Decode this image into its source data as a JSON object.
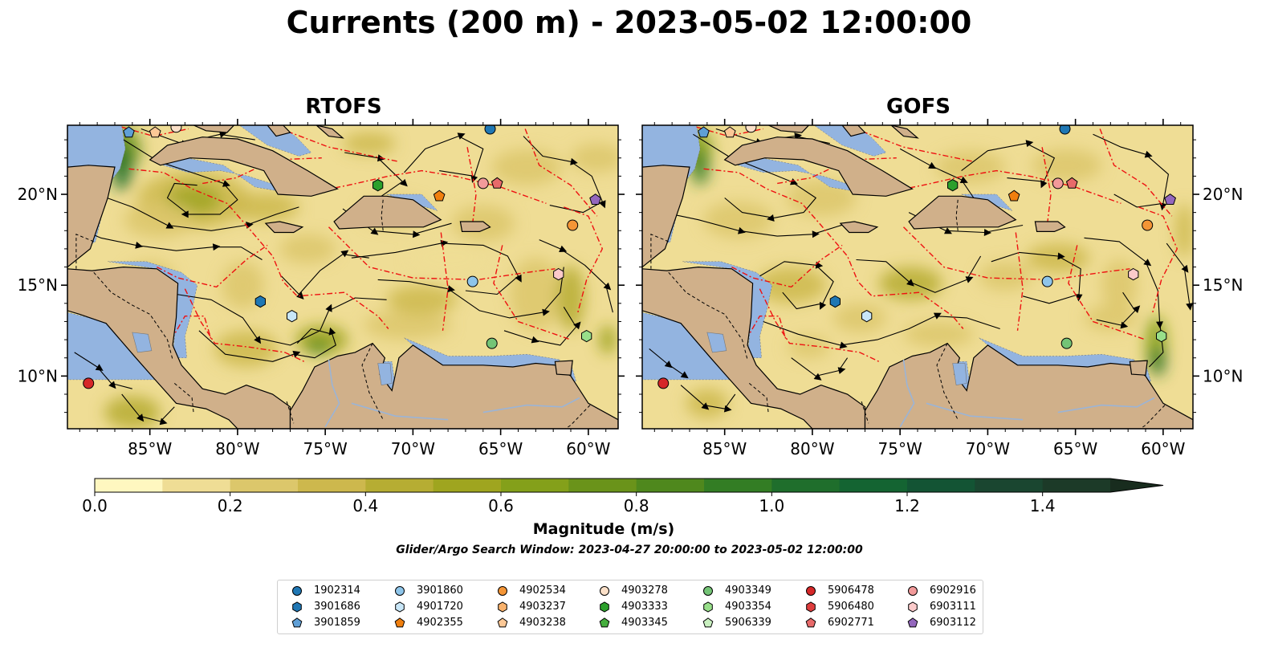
{
  "title": "Currents (200 m) - 2023-05-02 12:00:00",
  "panels": [
    {
      "id": "rtofs",
      "title": "RTOFS"
    },
    {
      "id": "gofs",
      "title": "GOFS"
    }
  ],
  "map_extent": {
    "lon_min": -89.7,
    "lon_max": -58.3,
    "lat_min": 7.1,
    "lat_max": 23.8
  },
  "lon_ticks": [
    "85°W",
    "80°W",
    "75°W",
    "70°W",
    "65°W",
    "60°W"
  ],
  "lon_tick_values": [
    -85,
    -80,
    -75,
    -70,
    -65,
    -60
  ],
  "lat_ticks": [
    "10°N",
    "15°N",
    "20°N"
  ],
  "lat_tick_values": [
    10,
    15,
    20
  ],
  "colorbar": {
    "label": "Magnitude (m/s)",
    "min": 0.0,
    "max": 1.5,
    "step": 0.1,
    "extend": "max",
    "tick_labels": [
      "0.0",
      "0.2",
      "0.4",
      "0.6",
      "0.8",
      "1.0",
      "1.2",
      "1.4"
    ],
    "tick_values": [
      0.0,
      0.2,
      0.4,
      0.6,
      0.8,
      1.0,
      1.2,
      1.4
    ],
    "colors": [
      "#fff7c0",
      "#efdd95",
      "#dcc76b",
      "#cdb84d",
      "#b6ad33",
      "#9fa51f",
      "#84a01a",
      "#6a931a",
      "#4f881d",
      "#337d24",
      "#1f6e2c",
      "#146432",
      "#135434",
      "#1a4630",
      "#1c3a28",
      "#182c1e"
    ]
  },
  "search_window": "Glider/Argo Search Window: 2023-04-27 20:00:00 to 2023-05-02 12:00:00",
  "colors": {
    "land": "#d0b08a",
    "shallow_water": "#93b4e0",
    "eez_line": "#ee1111",
    "streamline": "#000000"
  },
  "legend": [
    {
      "label": "1902314",
      "marker": "circle",
      "color": "#1f77b4"
    },
    {
      "label": "3901686",
      "marker": "hexagon",
      "color": "#1f77b4"
    },
    {
      "label": "3901859",
      "marker": "pentagon",
      "color": "#5f9fd6"
    },
    {
      "label": "3901860",
      "marker": "circle",
      "color": "#8ec5ea"
    },
    {
      "label": "4901720",
      "marker": "hexagon",
      "color": "#c8e6f7"
    },
    {
      "label": "4902355",
      "marker": "pentagon",
      "color": "#f07f0e"
    },
    {
      "label": "4902534",
      "marker": "circle",
      "color": "#f49536"
    },
    {
      "label": "4903237",
      "marker": "hexagon",
      "color": "#f9b26c"
    },
    {
      "label": "4903238",
      "marker": "pentagon",
      "color": "#fcc896"
    },
    {
      "label": "4903278",
      "marker": "circle",
      "color": "#fbe0c8"
    },
    {
      "label": "4903333",
      "marker": "hexagon",
      "color": "#2ca02c"
    },
    {
      "label": "4903345",
      "marker": "pentagon",
      "color": "#45ae3d"
    },
    {
      "label": "4903349",
      "marker": "circle",
      "color": "#74c476"
    },
    {
      "label": "4903354",
      "marker": "hexagon",
      "color": "#98df8a"
    },
    {
      "label": "5906339",
      "marker": "pentagon",
      "color": "#c9f0c0"
    },
    {
      "label": "5906478",
      "marker": "circle",
      "color": "#d62728"
    },
    {
      "label": "5906480",
      "marker": "hexagon",
      "color": "#de3d3d"
    },
    {
      "label": "6902771",
      "marker": "pentagon",
      "color": "#e86a6a"
    },
    {
      "label": "6902916",
      "marker": "circle",
      "color": "#f29a9a"
    },
    {
      "label": "6903111",
      "marker": "hexagon",
      "color": "#fbcaca"
    },
    {
      "label": "6903112",
      "marker": "pentagon",
      "color": "#9467bd"
    }
  ],
  "floats": [
    {
      "id": "3901859",
      "lon": -86.2,
      "lat": 23.4
    },
    {
      "id": "4903238",
      "lon": -84.7,
      "lat": 23.4
    },
    {
      "id": "4903278",
      "lon": -83.5,
      "lat": 23.7
    },
    {
      "id": "1902314",
      "lon": -65.6,
      "lat": 23.6
    },
    {
      "id": "4903333",
      "lon": -72.0,
      "lat": 20.5
    },
    {
      "id": "4902355",
      "lon": -68.5,
      "lat": 19.9
    },
    {
      "id": "6902916",
      "lon": -66.0,
      "lat": 20.6
    },
    {
      "id": "6902771",
      "lon": -65.2,
      "lat": 20.6
    },
    {
      "id": "6903112",
      "lon": -59.6,
      "lat": 19.7
    },
    {
      "id": "4902534",
      "lon": -60.9,
      "lat": 18.3
    },
    {
      "id": "6903111",
      "lon": -61.7,
      "lat": 15.6
    },
    {
      "id": "3901860",
      "lon": -66.6,
      "lat": 15.2
    },
    {
      "id": "3901686",
      "lon": -78.7,
      "lat": 14.1
    },
    {
      "id": "4901720",
      "lon": -76.9,
      "lat": 13.3
    },
    {
      "id": "4903349",
      "lon": -65.5,
      "lat": 11.8
    },
    {
      "id": "4903354",
      "lon": -60.1,
      "lat": 12.2
    },
    {
      "id": "5906478",
      "lon": -88.5,
      "lat": 9.6
    }
  ]
}
